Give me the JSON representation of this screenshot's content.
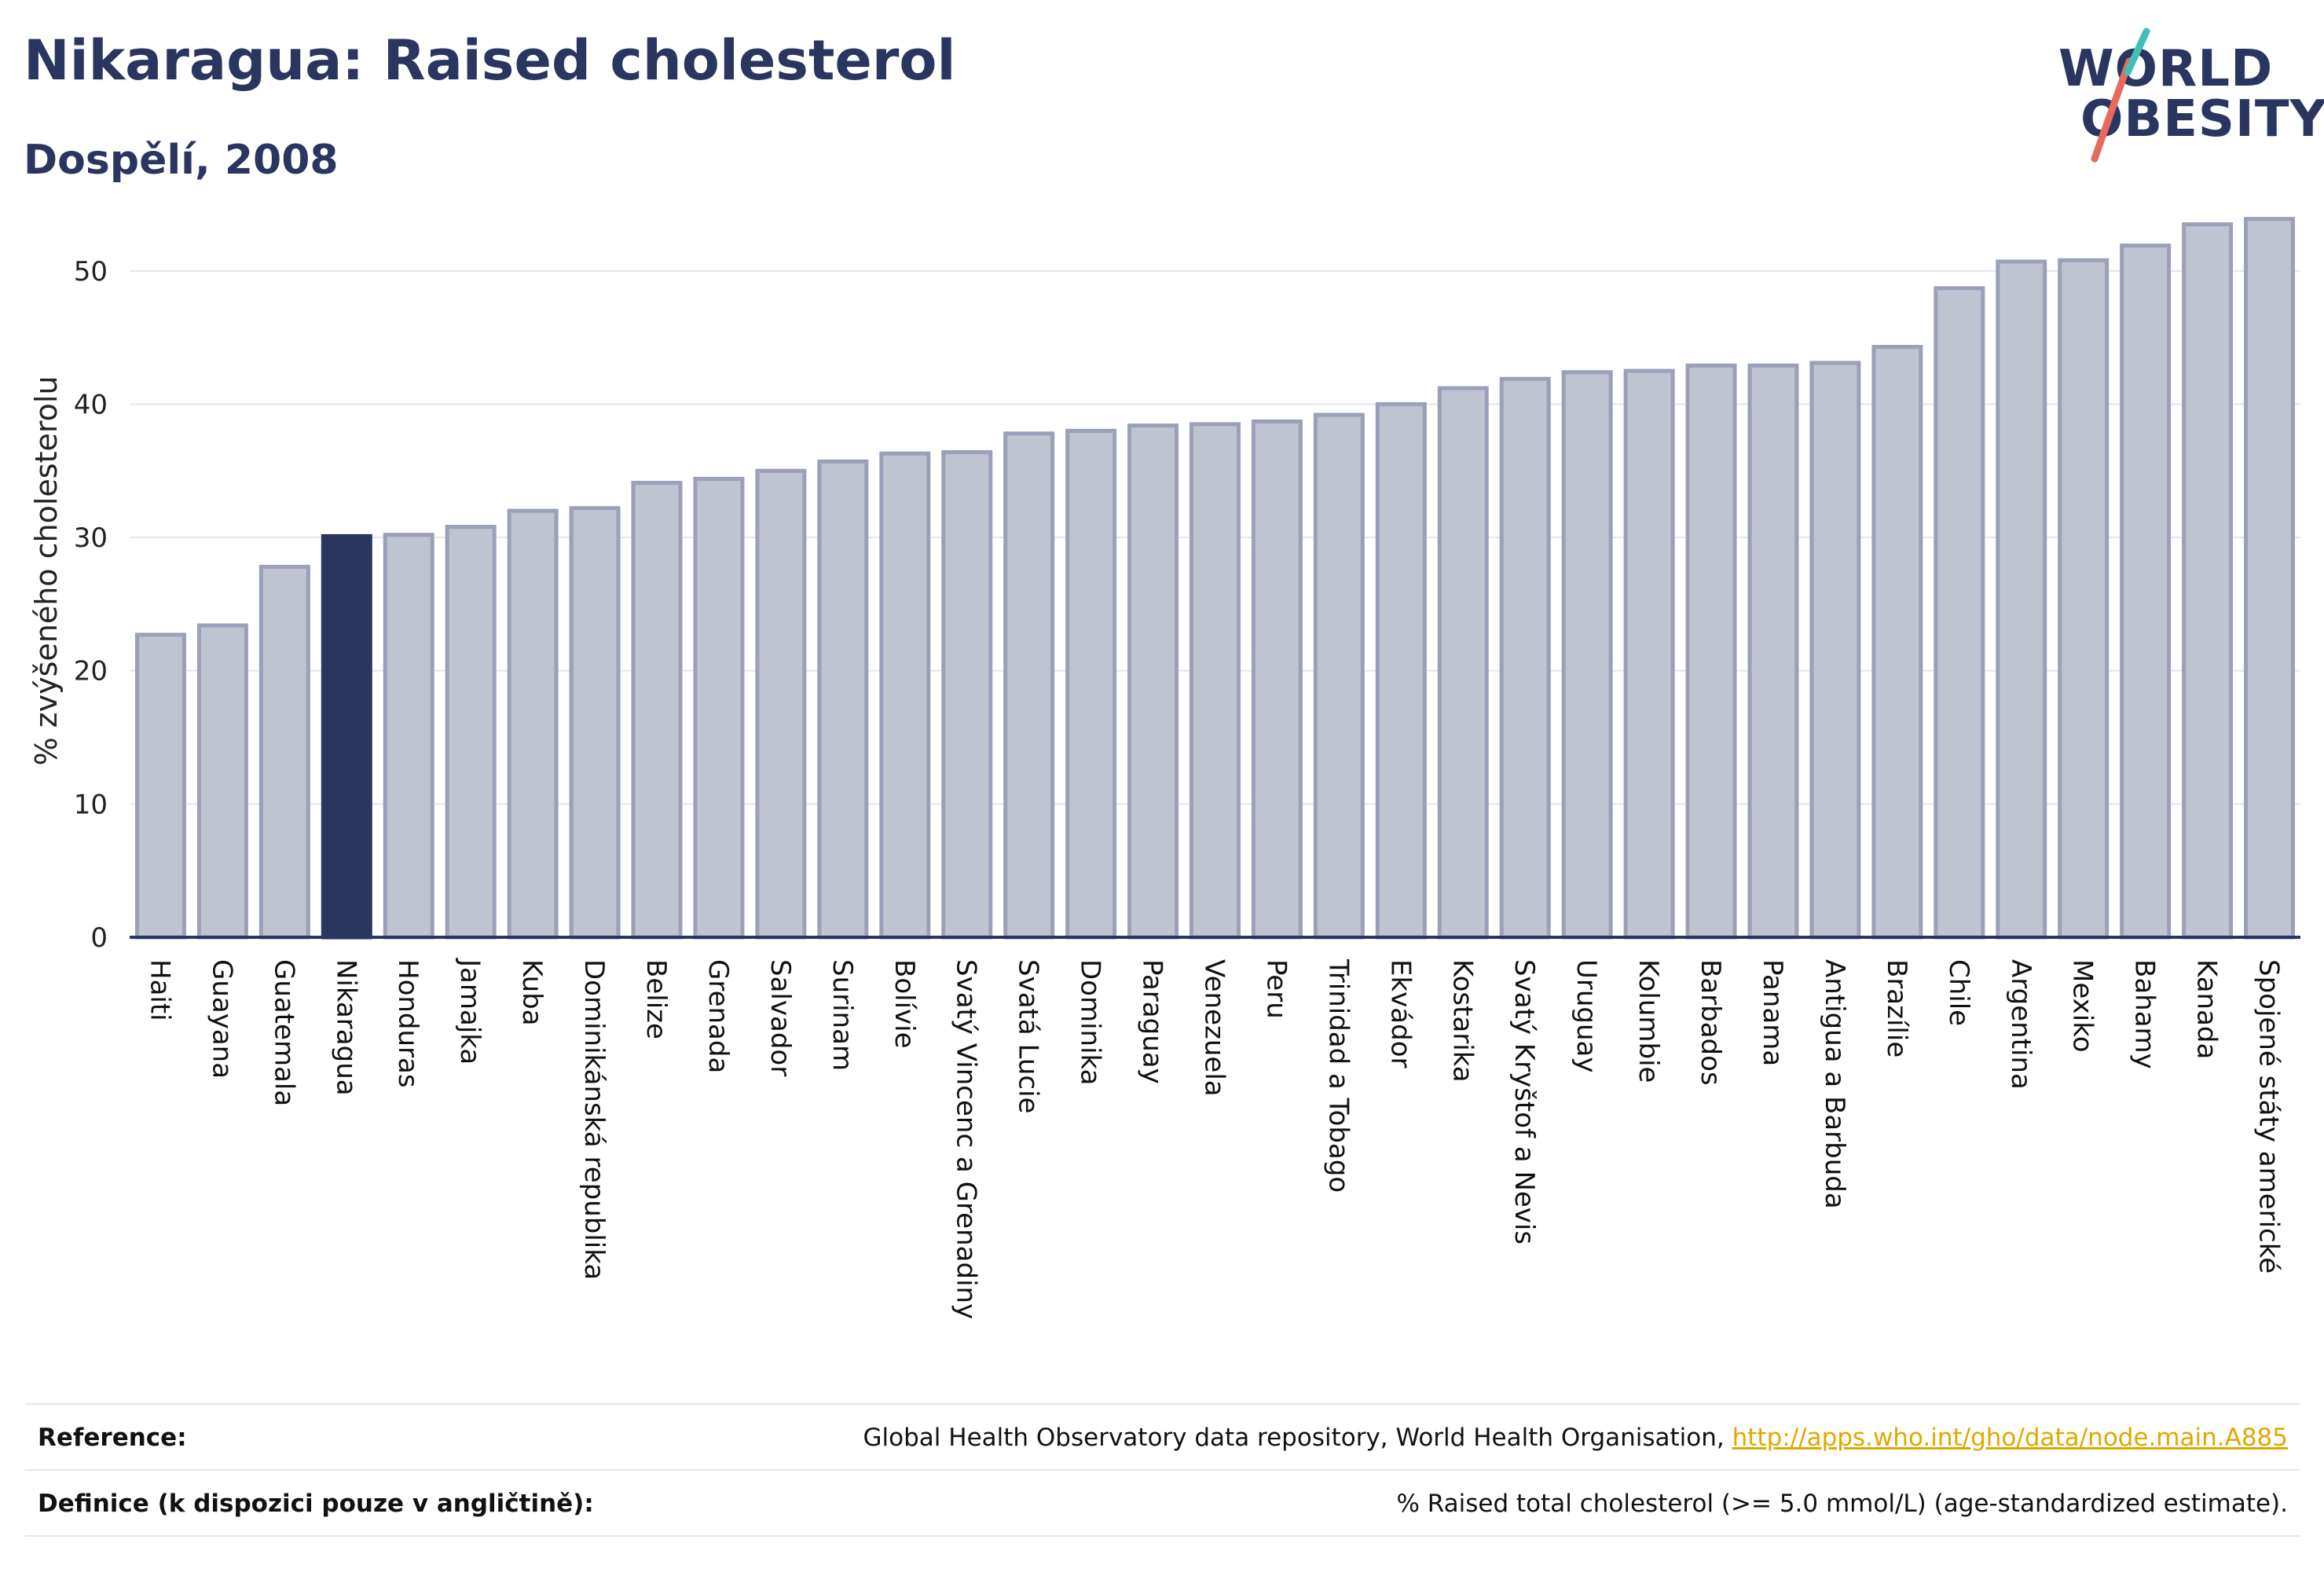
{
  "header": {
    "title": "Nikaragua: Raised cholesterol",
    "subtitle": "Dospělí, 2008"
  },
  "logo": {
    "line1": "WORLD",
    "line2": "OBESITY",
    "colors": {
      "teal": "#3fbfb8",
      "coral": "#e86a5a",
      "navy": "#2a3560"
    }
  },
  "colors": {
    "bar": "#c0c3d0",
    "bar_edge": "#9aa0b8",
    "highlight": "#2a3560",
    "axis": "#2a3560",
    "grid": "#e4e6ec"
  },
  "chart_data": {
    "type": "bar",
    "ylabel": "% zvýšeného cholesterolu",
    "ylim": [
      0,
      55
    ],
    "yticks": [
      0,
      10,
      20,
      30,
      40,
      50
    ],
    "grid": true,
    "highlight": "Nikaragua",
    "categories": [
      "Haiti",
      "Guayana",
      "Guatemala",
      "Nikaragua",
      "Honduras",
      "Jamajka",
      "Kuba",
      "Dominikánská republika",
      "Belize",
      "Grenada",
      "Salvador",
      "Surinam",
      "Bolívie",
      "Svatý Vincenc a Grenadiny",
      "Svatá Lucie",
      "Dominika",
      "Paraguay",
      "Venezuela",
      "Peru",
      "Trinidad a Tobago",
      "Ekvádor",
      "Kostarika",
      "Svatý Kryštof a Nevis",
      "Uruguay",
      "Kolumbie",
      "Barbados",
      "Panama",
      "Antigua a Barbuda",
      "Brazílie",
      "Chile",
      "Argentina",
      "Mexiko",
      "Bahamy",
      "Kanada",
      "Spojené státy americké"
    ],
    "values": [
      22.7,
      23.4,
      27.8,
      30.1,
      30.2,
      30.8,
      32.0,
      32.2,
      34.1,
      34.4,
      35.0,
      35.7,
      36.3,
      36.4,
      37.8,
      38.0,
      38.4,
      38.5,
      38.7,
      39.2,
      40.0,
      41.2,
      41.9,
      42.4,
      42.5,
      42.9,
      42.9,
      43.1,
      44.3,
      48.7,
      50.7,
      50.8,
      51.9,
      53.5,
      53.9
    ]
  },
  "reference": {
    "rows": [
      {
        "key": "Reference:",
        "text": "Global Health Observatory data repository, World Health Organisation, ",
        "link": "http://apps.who.int/gho/data/node.main.A885"
      },
      {
        "key": "Definice (k dispozici pouze v angličtině):",
        "text": "% Raised total cholesterol (>= 5.0 mmol/L) (age-standardized estimate).",
        "link": ""
      }
    ]
  }
}
